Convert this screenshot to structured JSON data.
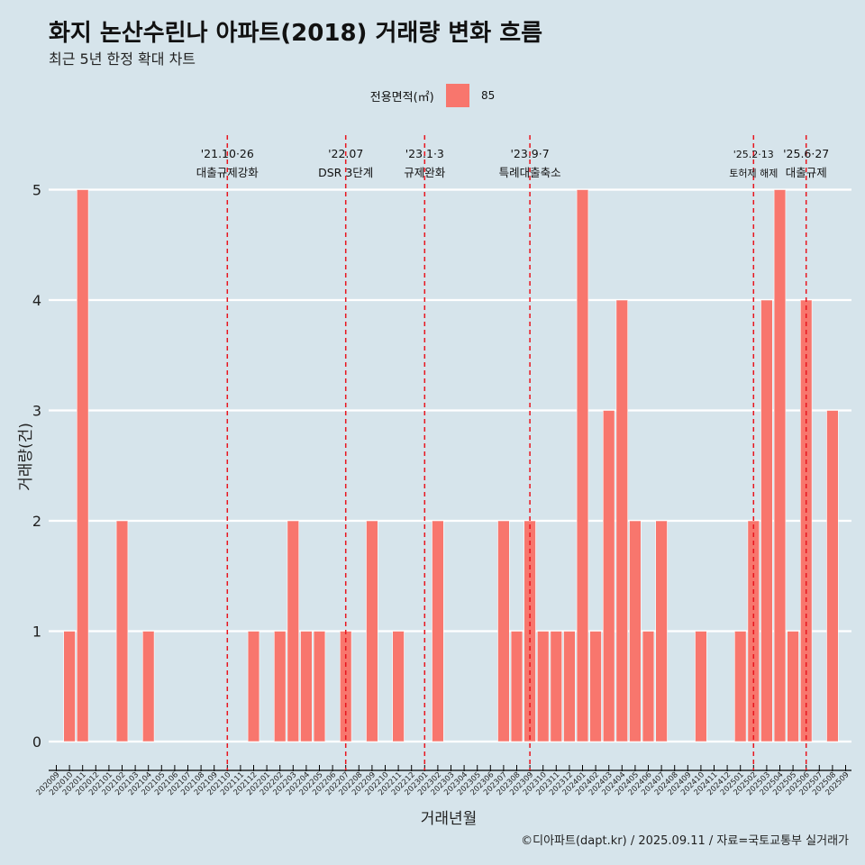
{
  "title": "화지 논산수린나 아파트(2018) 거래량 변화 흐름",
  "subtitle": "최근 5년 한정 확대 차트",
  "legend": {
    "title": "전용면적(㎡)",
    "label": "85",
    "color": "#f8766d"
  },
  "caption": "©디아파트(dapt.kr) / 2025.09.11 / 자료=국토교통부 실거래가",
  "chart_data": {
    "type": "bar",
    "xlabel": "거래년월",
    "ylabel": "거래량(건)",
    "ylim": [
      0,
      5
    ],
    "y_ticks": [
      0,
      1,
      2,
      3,
      4,
      5
    ],
    "grid": "horizontal",
    "legend_position": "top",
    "categories": [
      "202009",
      "202010",
      "202011",
      "202012",
      "202101",
      "202102",
      "202103",
      "202104",
      "202105",
      "202106",
      "202107",
      "202108",
      "202109",
      "202110",
      "202111",
      "202112",
      "202201",
      "202202",
      "202203",
      "202204",
      "202205",
      "202206",
      "202207",
      "202208",
      "202209",
      "202210",
      "202211",
      "202212",
      "202301",
      "202302",
      "202303",
      "202304",
      "202305",
      "202306",
      "202307",
      "202308",
      "202309",
      "202310",
      "202311",
      "202312",
      "202401",
      "202402",
      "202403",
      "202404",
      "202405",
      "202406",
      "202407",
      "202408",
      "202409",
      "202410",
      "202411",
      "202412",
      "202501",
      "202502",
      "202503",
      "202504",
      "202505",
      "202506",
      "202507",
      "202508",
      "202509"
    ],
    "series": [
      {
        "name": "85",
        "values": [
          null,
          1,
          5,
          null,
          null,
          2,
          null,
          1,
          null,
          null,
          null,
          null,
          null,
          null,
          null,
          1,
          null,
          1,
          2,
          1,
          1,
          null,
          1,
          null,
          2,
          null,
          1,
          null,
          null,
          2,
          null,
          null,
          null,
          null,
          2,
          1,
          2,
          1,
          1,
          1,
          5,
          1,
          3,
          4,
          2,
          1,
          2,
          null,
          null,
          1,
          null,
          null,
          1,
          2,
          4,
          5,
          1,
          4,
          null,
          3,
          null
        ]
      }
    ],
    "events": [
      {
        "date": "202110",
        "label": "'21.10·26",
        "desc": "대출규제강화"
      },
      {
        "date": "202207",
        "label": "'22.07",
        "desc": "DSR 3단계"
      },
      {
        "date": "202301",
        "label": "'23.1·3",
        "desc": "규제완화"
      },
      {
        "date": "202309",
        "label": "'23.9·7",
        "desc": "특례대출축소"
      },
      {
        "date": "202502",
        "label": "'25.2·13",
        "desc": "토허제 해제"
      },
      {
        "date": "202506",
        "label": "'25.6·27",
        "desc": "대출규제"
      }
    ]
  }
}
